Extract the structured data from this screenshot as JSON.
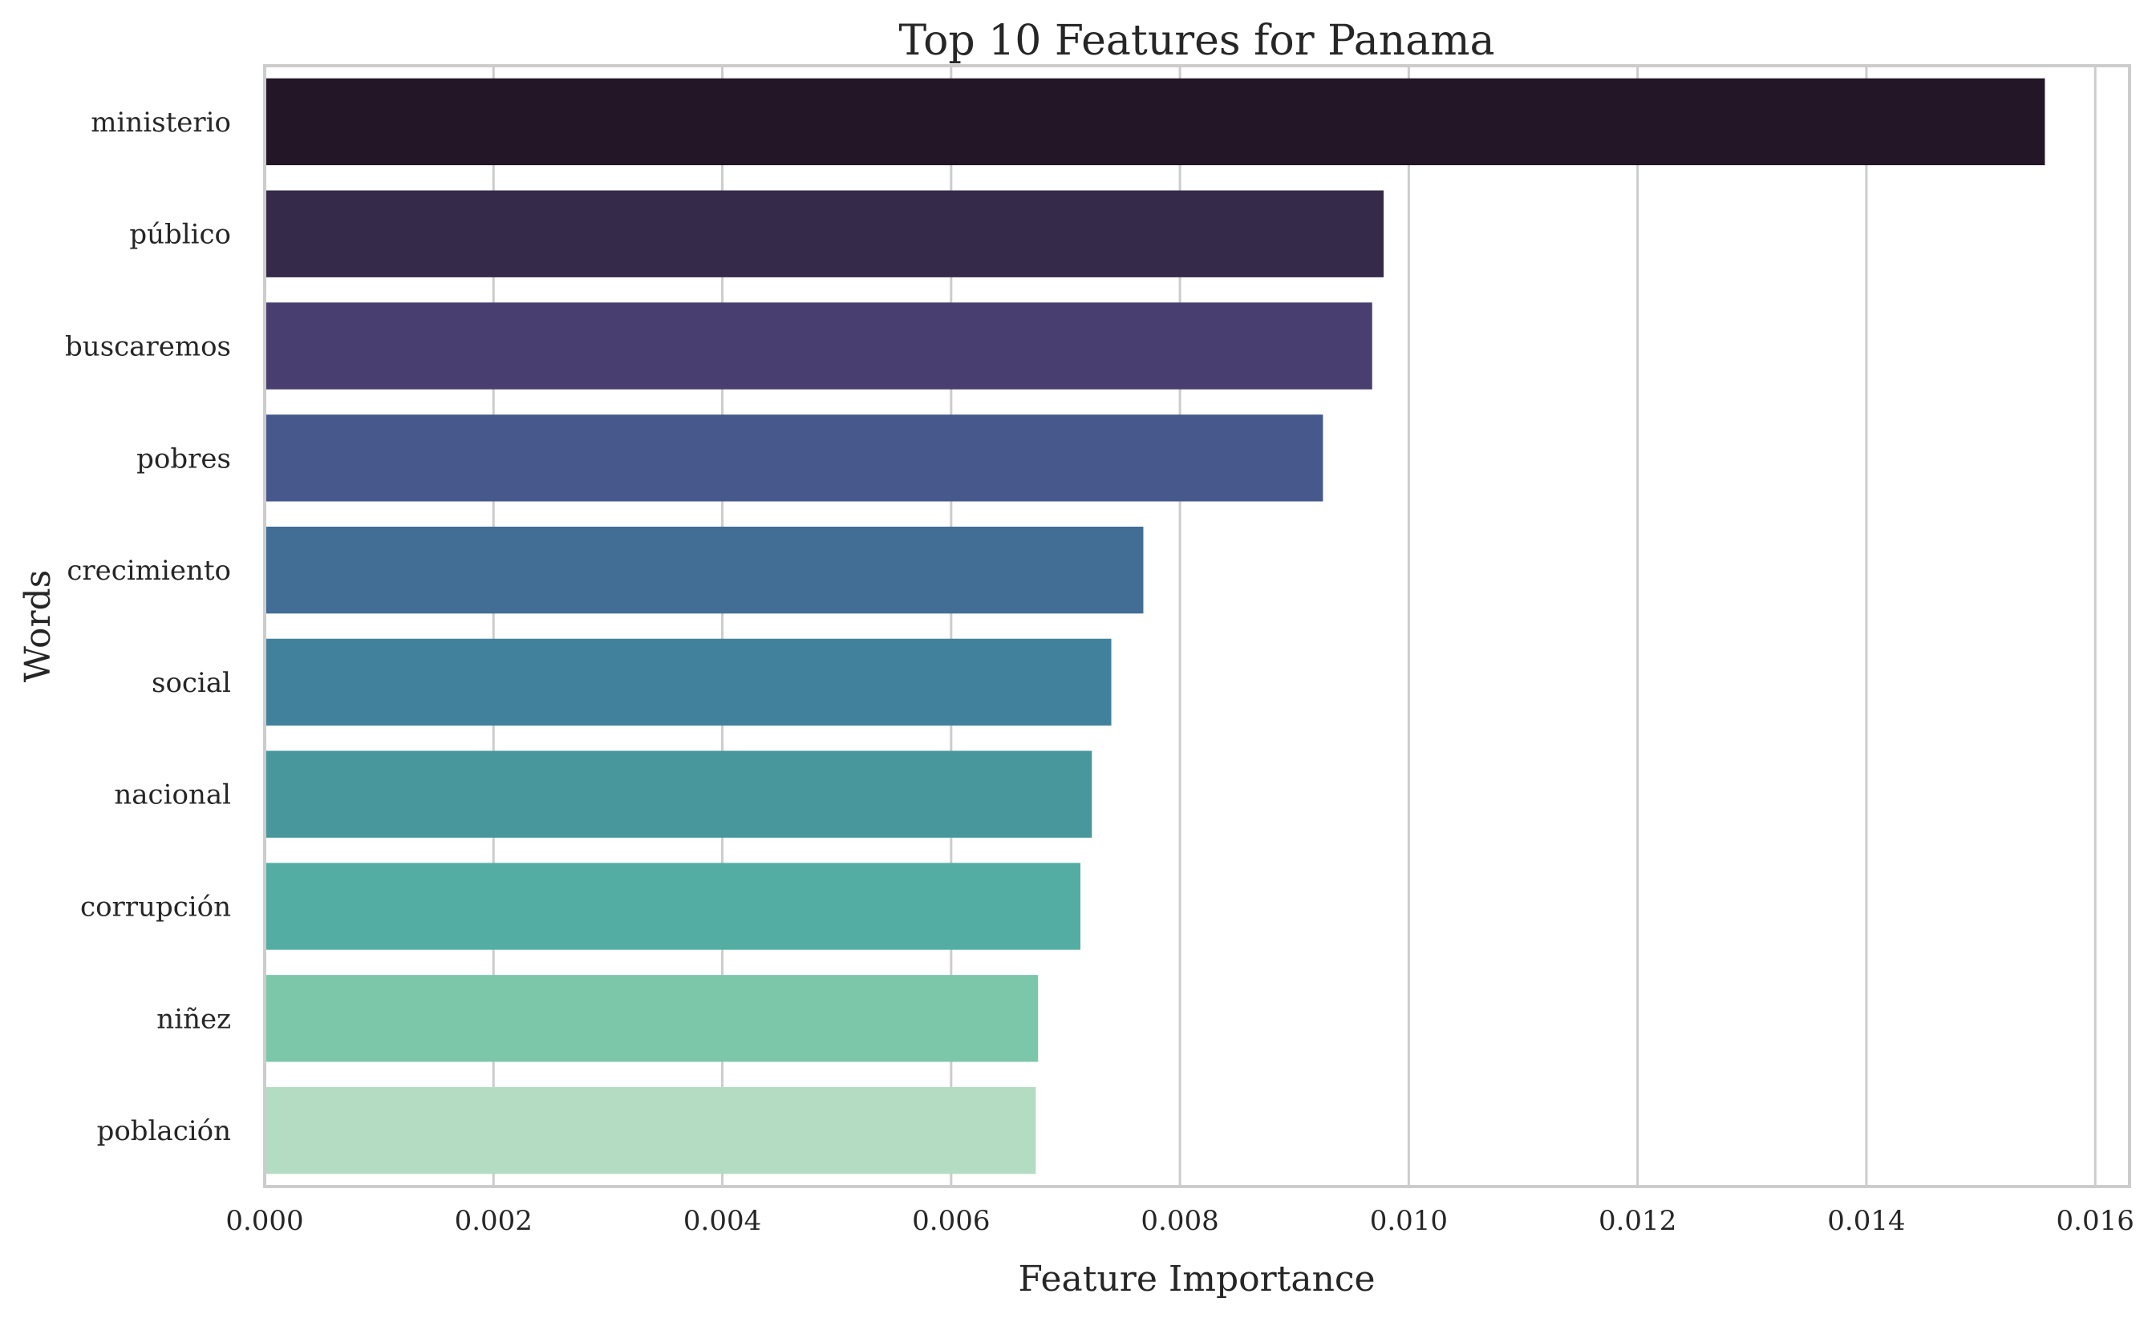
{
  "chart_data": {
    "type": "bar",
    "orientation": "horizontal",
    "title": "Top 10 Features for Panama",
    "xlabel": "Feature Importance",
    "ylabel": "Words",
    "categories": [
      "ministerio",
      "público",
      "buscaremos",
      "pobres",
      "crecimiento",
      "social",
      "nacional",
      "corrupción",
      "niñez",
      "población"
    ],
    "values": [
      0.01556,
      0.00978,
      0.00968,
      0.00925,
      0.00768,
      0.0074,
      0.00723,
      0.00713,
      0.00676,
      0.00674
    ],
    "colors": [
      "#221627",
      "#352a4a",
      "#483f70",
      "#47598c",
      "#426d94",
      "#42819c",
      "#47979d",
      "#54ada3",
      "#7cc6a9",
      "#b3dcc2"
    ],
    "xlim": [
      0,
      0.0163
    ],
    "xticks": [
      "0.000",
      "0.002",
      "0.004",
      "0.006",
      "0.008",
      "0.010",
      "0.012",
      "0.014",
      "0.016"
    ],
    "xtick_values": [
      0,
      0.002,
      0.004,
      0.006,
      0.008,
      0.01,
      0.012,
      0.014,
      0.016
    ],
    "grid": "vertical",
    "legend": "none"
  }
}
